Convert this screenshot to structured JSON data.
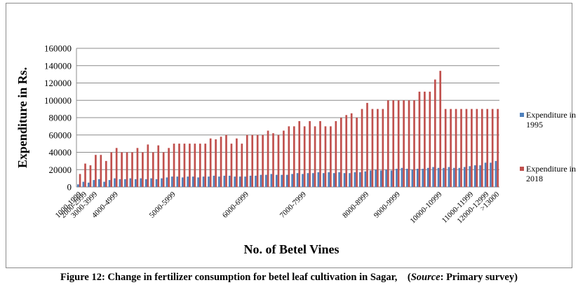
{
  "chart_data": {
    "type": "bar",
    "xlabel": "No. of Betel Vines",
    "ylabel": "Expenditure in Rs.",
    "ylim": [
      0,
      160000
    ],
    "yticks": [
      "0",
      "20000",
      "40000",
      "60000",
      "80000",
      "100000",
      "120000",
      "140000",
      "160000"
    ],
    "grid": true,
    "legend_position": "right",
    "x_tick_labels": [
      {
        "index": 0,
        "label": "1000-1999"
      },
      {
        "index": 1,
        "label": "2000-2999"
      },
      {
        "index": 3,
        "label": "3000-3999"
      },
      {
        "index": 7,
        "label": "4000-4999"
      },
      {
        "index": 18,
        "label": "5000-5999"
      },
      {
        "index": 32,
        "label": "6000-6999"
      },
      {
        "index": 43,
        "label": "7000-7999"
      },
      {
        "index": 55,
        "label": "8000-8999"
      },
      {
        "index": 61,
        "label": "9000-9999"
      },
      {
        "index": 69,
        "label": "10000-10999"
      },
      {
        "index": 75,
        "label": "11000-11999"
      },
      {
        "index": 78,
        "label": "12000-12999"
      },
      {
        "index": 80,
        "label": ">13000"
      }
    ],
    "series": [
      {
        "name": "Expenditure in 1995",
        "color": "#4f81bd",
        "values": [
          3000,
          6000,
          5000,
          8000,
          9000,
          6000,
          8000,
          10000,
          9000,
          9000,
          10000,
          9000,
          10000,
          9000,
          10000,
          9000,
          10000,
          11000,
          12000,
          12000,
          11000,
          12000,
          12000,
          11000,
          12000,
          12000,
          13000,
          12000,
          13000,
          13000,
          12000,
          12000,
          12000,
          13000,
          13000,
          14000,
          14000,
          15000,
          14000,
          14000,
          14000,
          15000,
          16000,
          15000,
          16000,
          16000,
          17000,
          16000,
          17000,
          16000,
          17000,
          16000,
          16000,
          17000,
          17000,
          18000,
          19000,
          20000,
          19000,
          20000,
          19000,
          21000,
          22000,
          21000,
          20000,
          21000,
          21000,
          22000,
          23000,
          22000,
          22000,
          23000,
          22000,
          22000,
          23000,
          24000,
          25000,
          25000,
          28000,
          28000,
          30000
        ]
      },
      {
        "name": "Expenditure in 2018",
        "color": "#c0504d",
        "values": [
          15000,
          27000,
          25000,
          37000,
          37000,
          30000,
          40000,
          45000,
          40000,
          40000,
          40000,
          45000,
          40000,
          49000,
          40000,
          48000,
          40000,
          45000,
          50000,
          50000,
          50000,
          50000,
          50000,
          50000,
          50000,
          56000,
          55000,
          58000,
          60000,
          50000,
          56000,
          50000,
          60000,
          60000,
          60000,
          60000,
          65000,
          62000,
          60000,
          65000,
          70000,
          70000,
          76000,
          70000,
          76000,
          70000,
          76000,
          70000,
          70000,
          76000,
          80000,
          83000,
          85000,
          80000,
          90000,
          97000,
          90000,
          90000,
          90000,
          100000,
          100000,
          100000,
          100000,
          100000,
          100000,
          110000,
          110000,
          110000,
          124000,
          134000,
          90000,
          90000,
          90000,
          90000,
          90000,
          90000,
          90000,
          90000,
          90000,
          90000,
          90000
        ]
      }
    ]
  },
  "caption": {
    "prefix": "Figure 12: Change in fertilizer consumption for betel leaf cultivation in Sagar,    (",
    "source_word": "Source",
    "suffix": ": Primary survey)"
  }
}
